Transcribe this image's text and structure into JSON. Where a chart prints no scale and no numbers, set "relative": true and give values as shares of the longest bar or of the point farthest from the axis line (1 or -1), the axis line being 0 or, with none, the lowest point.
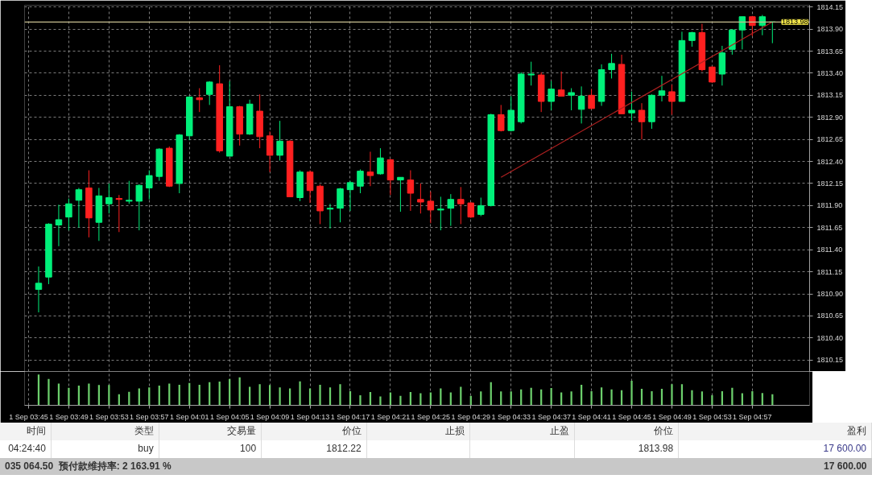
{
  "chart_data": [
    {
      "type": "candlestick",
      "categories": [
        null,
        null,
        null,
        null,
        null,
        null,
        null,
        null,
        null,
        null,
        null,
        null,
        null,
        null,
        null,
        null,
        null,
        null,
        null,
        null,
        null,
        null,
        null,
        null,
        null,
        null,
        null,
        null,
        null,
        null,
        null,
        null,
        null,
        null,
        null,
        null,
        null,
        null,
        null,
        null,
        null,
        null,
        null,
        null,
        null,
        null,
        null,
        null,
        null,
        null,
        null,
        null,
        null,
        null,
        null,
        null,
        null,
        null,
        null,
        null,
        null,
        null,
        null,
        null,
        null,
        null,
        null,
        null,
        null,
        null,
        null,
        null,
        null,
        null,
        null
      ],
      "ohlc": [
        null,
        [
          1810.95,
          1811.21,
          1810.69,
          1811.02
        ],
        [
          1811.09,
          1811.7,
          1811.01,
          1811.69
        ],
        [
          1811.68,
          1811.91,
          1811.44,
          1811.74
        ],
        [
          1811.77,
          1811.98,
          1811.62,
          1811.92
        ],
        [
          1811.96,
          1812.1,
          1811.65,
          1812.08
        ],
        [
          1812.1,
          1812.3,
          1811.54,
          1811.76
        ],
        [
          1811.71,
          1812.1,
          1811.5,
          1812.01
        ],
        [
          1811.92,
          1812.15,
          1811.81,
          1811.99
        ],
        [
          1811.98,
          1812.02,
          1811.6,
          1811.97
        ],
        [
          1811.95,
          1812.18,
          1811.92,
          1811.96
        ],
        [
          1811.95,
          1812.14,
          1811.62,
          1812.13
        ],
        [
          1812.1,
          1812.3,
          1811.97,
          1812.24
        ],
        [
          1812.23,
          1812.55,
          1812.18,
          1812.54
        ],
        [
          1812.55,
          1812.57,
          1812.11,
          1812.12
        ],
        [
          1812.15,
          1812.71,
          1812.04,
          1812.7
        ],
        [
          1812.69,
          1813.14,
          1812.64,
          1813.13
        ],
        [
          1813.12,
          1813.23,
          1812.96,
          1813.1
        ],
        [
          1813.16,
          1813.31,
          1813.04,
          1813.3
        ],
        [
          1813.28,
          1813.49,
          1812.5,
          1812.52
        ],
        [
          1812.46,
          1813.31,
          1812.46,
          1813.02
        ],
        [
          1813.02,
          1813.03,
          1812.58,
          1812.71
        ],
        [
          1812.71,
          1813.1,
          1812.7,
          1813.05
        ],
        [
          1812.97,
          1813.16,
          1812.55,
          1812.68
        ],
        [
          1812.69,
          1812.74,
          1812.28,
          1812.47
        ],
        [
          1812.47,
          1812.86,
          1812.41,
          1812.63
        ],
        [
          1812.63,
          1812.64,
          1812.0,
          1812.0
        ],
        [
          1811.99,
          1812.3,
          1811.95,
          1812.28
        ],
        [
          1812.28,
          1812.3,
          1811.93,
          1812.07
        ],
        [
          1812.12,
          1812.14,
          1811.69,
          1811.84
        ],
        [
          1811.86,
          1811.92,
          1811.64,
          1811.87
        ],
        [
          1811.87,
          1812.1,
          1811.71,
          1812.09
        ],
        [
          1812.08,
          1812.18,
          1811.84,
          1812.16
        ],
        [
          1812.12,
          1812.31,
          1812.04,
          1812.29
        ],
        [
          1812.28,
          1812.51,
          1812.12,
          1812.24
        ],
        [
          1812.26,
          1812.55,
          1812.25,
          1812.44
        ],
        [
          1812.42,
          1812.43,
          1812.02,
          1812.19
        ],
        [
          1812.19,
          1812.22,
          1811.83,
          1812.22
        ],
        [
          1812.19,
          1812.3,
          1811.84,
          1812.04
        ],
        [
          1811.97,
          1812.15,
          1811.81,
          1811.94
        ],
        [
          1811.95,
          1812.06,
          1811.7,
          1811.85
        ],
        [
          1811.85,
          1812.0,
          1811.62,
          1811.86
        ],
        [
          1811.87,
          1812.03,
          1811.67,
          1811.97
        ],
        [
          1811.97,
          1812.11,
          1811.69,
          1811.92
        ],
        [
          1811.93,
          1811.94,
          1811.76,
          1811.77
        ],
        [
          1811.8,
          1811.99,
          1811.78,
          1811.9
        ],
        [
          1811.9,
          1812.94,
          1811.89,
          1812.93
        ],
        [
          1812.93,
          1813.04,
          1812.74,
          1812.75
        ],
        [
          1812.75,
          1813.14,
          1812.74,
          1812.98
        ],
        [
          1812.85,
          1813.41,
          1812.83,
          1813.39
        ],
        [
          1813.38,
          1813.53,
          1813.26,
          1813.39
        ],
        [
          1813.38,
          1813.41,
          1812.96,
          1813.08
        ],
        [
          1813.08,
          1813.31,
          1812.98,
          1813.22
        ],
        [
          1813.21,
          1813.42,
          1813.14,
          1813.14
        ],
        [
          1813.15,
          1813.23,
          1812.98,
          1813.18
        ],
        [
          1812.99,
          1813.25,
          1812.83,
          1813.14
        ],
        [
          1813.15,
          1813.22,
          1812.99,
          1813.0
        ],
        [
          1813.08,
          1813.5,
          1813.03,
          1813.44
        ],
        [
          1813.44,
          1813.62,
          1813.34,
          1813.51
        ],
        [
          1813.5,
          1813.61,
          1812.94,
          1812.94
        ],
        [
          1812.95,
          1813.19,
          1812.86,
          1812.98
        ],
        [
          1812.98,
          1813.06,
          1812.65,
          1812.85
        ],
        [
          1812.85,
          1813.16,
          1812.77,
          1813.15
        ],
        [
          1813.15,
          1813.37,
          1813.08,
          1813.2
        ],
        [
          1813.19,
          1813.27,
          1812.93,
          1813.08
        ],
        [
          1813.08,
          1813.87,
          1813.08,
          1813.77
        ],
        [
          1813.77,
          1813.87,
          1813.7,
          1813.86
        ],
        [
          1813.86,
          1813.96,
          1813.42,
          1813.44
        ],
        [
          1813.47,
          1813.48,
          1813.29,
          1813.3
        ],
        [
          1813.39,
          1813.71,
          1813.26,
          1813.63
        ],
        [
          1813.67,
          1813.9,
          1813.61,
          1813.89
        ],
        [
          1813.89,
          1814.04,
          1813.67,
          1814.04
        ],
        [
          1814.04,
          1814.05,
          1813.82,
          1813.94
        ],
        [
          1813.94,
          1814.06,
          1813.83,
          1814.04
        ],
        [
          1813.98,
          1813.98,
          1813.74,
          1813.98
        ]
      ],
      "colors": [
        null,
        "#00f07a",
        "#00f07a",
        "#00f07a",
        "#00f07a",
        "#00f07a",
        "#ff2020",
        "#00f07a",
        "#00f07a",
        "#ff2020",
        "#00f07a",
        "#00f07a",
        "#00f07a",
        "#00f07a",
        "#ff2020",
        "#00f07a",
        "#00f07a",
        "#ff2020",
        "#00f07a",
        "#ff2020",
        "#00f07a",
        "#ff2020",
        "#00f07a",
        "#ff2020",
        "#ff2020",
        "#00f07a",
        "#ff2020",
        "#00f07a",
        "#ff2020",
        "#ff2020",
        "#00f07a",
        "#00f07a",
        "#00f07a",
        "#00f07a",
        "#ff2020",
        "#00f07a",
        "#ff2020",
        "#00f07a",
        "#ff2020",
        "#ff2020",
        "#ff2020",
        "#00f07a",
        "#00f07a",
        "#ff2020",
        "#ff2020",
        "#00f07a",
        "#00f07a",
        "#ff2020",
        "#00f07a",
        "#00f07a",
        "#00f07a",
        "#ff2020",
        "#00f07a",
        "#ff2020",
        "#00f07a",
        "#00f07a",
        "#ff2020",
        "#00f07a",
        "#00f07a",
        "#ff2020",
        "#00f07a",
        "#ff2020",
        "#00f07a",
        "#00f07a",
        "#ff2020",
        "#00f07a",
        "#00f07a",
        "#ff2020",
        "#ff2020",
        "#00f07a",
        "#00f07a",
        "#00f07a",
        "#ff2020",
        "#00f07a",
        "#00f07a"
      ],
      "series": [
        {
          "type": "line",
          "color": "#b02020",
          "values": [
            null,
            null,
            null,
            null,
            null,
            null,
            null,
            null,
            null,
            null,
            null,
            null,
            null,
            null,
            null,
            null,
            null,
            null,
            null,
            null,
            null,
            null,
            null,
            null,
            null,
            null,
            null,
            null,
            null,
            null,
            null,
            null,
            null,
            null,
            null,
            null,
            null,
            null,
            null,
            null,
            null,
            null,
            null,
            null,
            null,
            null,
            null,
            1812.22,
            null,
            null,
            null,
            null,
            null,
            null,
            null,
            null,
            null,
            null,
            null,
            null,
            null,
            null,
            null,
            null,
            null,
            null,
            null,
            null,
            null,
            null,
            null,
            null,
            null,
            null,
            1813.98
          ]
        }
      ],
      "ref_lines": [
        {
          "axis": "y",
          "value": 1813.98,
          "label": "1813.98",
          "color": "#c8c090"
        }
      ],
      "ylim": [
        1810.02,
        1814.17
      ],
      "yticks": [
        1810.15,
        {
          "value": 1810.4,
          "label": "1810.40"
        },
        1810.65,
        {
          "value": 1810.9,
          "label": "1810.90"
        },
        1811.15,
        {
          "value": 1811.4,
          "label": "1811.40"
        },
        1811.65,
        {
          "value": 1811.9,
          "label": "1811.90"
        },
        1812.15,
        {
          "value": 1812.4,
          "label": "1812.40"
        },
        1812.65,
        {
          "value": 1812.9,
          "label": "1812.90"
        },
        1813.15,
        {
          "value": 1813.4,
          "label": "1813.40"
        },
        1813.65,
        {
          "value": 1813.9,
          "label": "1813.90"
        },
        1814.15
      ],
      "tick_labels": "y",
      "grid": true,
      "annotations": [
        "时间",
        "类型",
        "交易量",
        "价位",
        "止损",
        "止盈",
        "价位",
        "盈利",
        "04:24:40",
        "buy",
        "100",
        "1812.22",
        "1813.98",
        "17 600.00",
        "035 064.50",
        "预付款维持率: 2 163.91 %",
        "17 600.00"
      ]
    },
    {
      "type": "bar",
      "relative": true,
      "categories": [
        "1 Sep 03:45",
        null,
        null,
        null,
        "1 Sep 03:49",
        null,
        null,
        null,
        "1 Sep 03:53",
        null,
        null,
        null,
        "1 Sep 03:57",
        null,
        null,
        null,
        "1 Sep 04:01",
        null,
        null,
        null,
        "1 Sep 04:05",
        null,
        null,
        null,
        "1 Sep 04:09",
        null,
        null,
        null,
        "1 Sep 04:13",
        null,
        null,
        null,
        "1 Sep 04:17",
        null,
        null,
        null,
        "1 Sep 04:21",
        null,
        null,
        null,
        "1 Sep 04:25",
        null,
        null,
        null,
        "1 Sep 04:29",
        null,
        null,
        null,
        "1 Sep 04:33",
        null,
        null,
        null,
        "1 Sep 04:37",
        null,
        null,
        null,
        "1 Sep 04:41",
        null,
        null,
        null,
        "1 Sep 04:45",
        null,
        null,
        null,
        "1 Sep 04:49",
        null,
        null,
        null,
        "1 Sep 04:53",
        null,
        null,
        null,
        "1 Sep 04:57",
        null,
        null
      ],
      "series": [
        {
          "color": "#6ccf6c",
          "values": [
            null,
            1,
            0.86,
            0.71,
            0.57,
            0.64,
            0.71,
            0.66,
            0.66,
            0.36,
            0.44,
            0.55,
            0.58,
            0.64,
            0.71,
            0.67,
            0.73,
            0.67,
            0.75,
            0.77,
            0.86,
            0.91,
            0.6,
            0.69,
            0.66,
            0.58,
            0.55,
            0.78,
            0.55,
            0.67,
            0.58,
            0.69,
            0.46,
            0.33,
            0.43,
            0.29,
            0.42,
            0.31,
            0.43,
            0.39,
            0.42,
            0.55,
            0.42,
            0.6,
            0.31,
            0.45,
            0.75,
            0.45,
            0.45,
            0.52,
            0.57,
            0.52,
            0.56,
            0.42,
            0.45,
            0.67,
            0.46,
            0.58,
            0.52,
            0.49,
            0.8,
            0.54,
            0.46,
            0.54,
            0.69,
            0.69,
            0.49,
            0.45,
            0.33,
            0.46,
            0.57,
            0.39,
            0.46,
            0.4,
            0.36
          ]
        }
      ],
      "tick_labels": "x",
      "grid": "x"
    }
  ]
}
